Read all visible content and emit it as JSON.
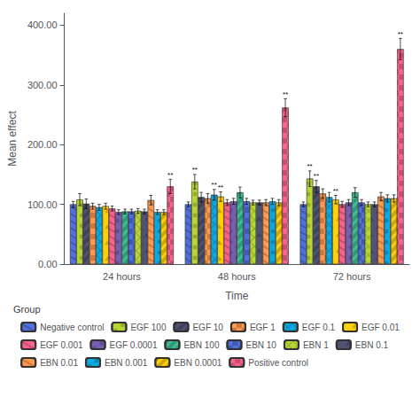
{
  "chart_data": {
    "type": "bar",
    "xlabel": "Time",
    "ylabel": "Mean effect",
    "ylim": [
      0,
      420
    ],
    "yticks": [
      {
        "value": 0,
        "label": "0.00"
      },
      {
        "value": 100,
        "label": "100.00"
      },
      {
        "value": 200,
        "label": "200.00"
      },
      {
        "value": 300,
        "label": "300.00"
      },
      {
        "value": 400,
        "label": "400.00"
      }
    ],
    "grid": false,
    "legend": "bottom",
    "legend_title": "Group",
    "categories": [
      "24 hours",
      "48 hours",
      "72 hours"
    ],
    "series": [
      {
        "name": "Negative control",
        "values": [
          100,
          100,
          100
        ],
        "errors": [
          5,
          4,
          4
        ],
        "significance": [
          null,
          null,
          null
        ]
      },
      {
        "name": "EGF 100",
        "values": [
          108,
          138,
          143
        ],
        "errors": [
          10,
          12,
          13
        ],
        "significance": [
          null,
          "**",
          "**"
        ]
      },
      {
        "name": "EGF 10",
        "values": [
          101,
          112,
          130
        ],
        "errors": [
          8,
          8,
          10
        ],
        "significance": [
          null,
          null,
          "**"
        ]
      },
      {
        "name": "EGF 1",
        "values": [
          97,
          110,
          118
        ],
        "errors": [
          5,
          8,
          8
        ],
        "significance": [
          null,
          null,
          null
        ]
      },
      {
        "name": "EGF 0.1",
        "values": [
          95,
          116,
          112
        ],
        "errors": [
          5,
          9,
          8
        ],
        "significance": [
          null,
          "**",
          null
        ]
      },
      {
        "name": "EGF 0.01",
        "values": [
          97,
          113,
          108
        ],
        "errors": [
          5,
          8,
          7
        ],
        "significance": [
          null,
          "**",
          "**"
        ]
      },
      {
        "name": "EGF 0.001",
        "values": [
          93,
          103,
          100
        ],
        "errors": [
          4,
          5,
          5
        ],
        "significance": [
          null,
          null,
          null
        ]
      },
      {
        "name": "EGF 0.0001",
        "values": [
          87,
          105,
          103
        ],
        "errors": [
          4,
          5,
          5
        ],
        "significance": [
          null,
          null,
          null
        ]
      },
      {
        "name": "EBN 100",
        "values": [
          88,
          120,
          120
        ],
        "errors": [
          4,
          9,
          8
        ],
        "significance": [
          null,
          null,
          null
        ]
      },
      {
        "name": "EBN 10",
        "values": [
          88,
          105,
          103
        ],
        "errors": [
          4,
          5,
          5
        ],
        "significance": [
          null,
          null,
          null
        ]
      },
      {
        "name": "EBN 1",
        "values": [
          89,
          103,
          100
        ],
        "errors": [
          4,
          4,
          4
        ],
        "significance": [
          null,
          null,
          null
        ]
      },
      {
        "name": "EBN 0.1",
        "values": [
          88,
          103,
          100
        ],
        "errors": [
          4,
          4,
          4
        ],
        "significance": [
          null,
          null,
          null
        ]
      },
      {
        "name": "EBN 0.01",
        "values": [
          107,
          103,
          113
        ],
        "errors": [
          8,
          5,
          7
        ],
        "significance": [
          null,
          null,
          null
        ]
      },
      {
        "name": "EBN 0.001",
        "values": [
          87,
          105,
          110
        ],
        "errors": [
          4,
          5,
          6
        ],
        "significance": [
          null,
          null,
          null
        ]
      },
      {
        "name": "EBN 0.0001",
        "values": [
          87,
          103,
          110
        ],
        "errors": [
          4,
          5,
          6
        ],
        "significance": [
          null,
          null,
          null
        ]
      },
      {
        "name": "Positive control",
        "values": [
          130,
          262,
          360
        ],
        "errors": [
          12,
          15,
          18
        ],
        "significance": [
          "**",
          "**",
          "**"
        ]
      }
    ]
  }
}
